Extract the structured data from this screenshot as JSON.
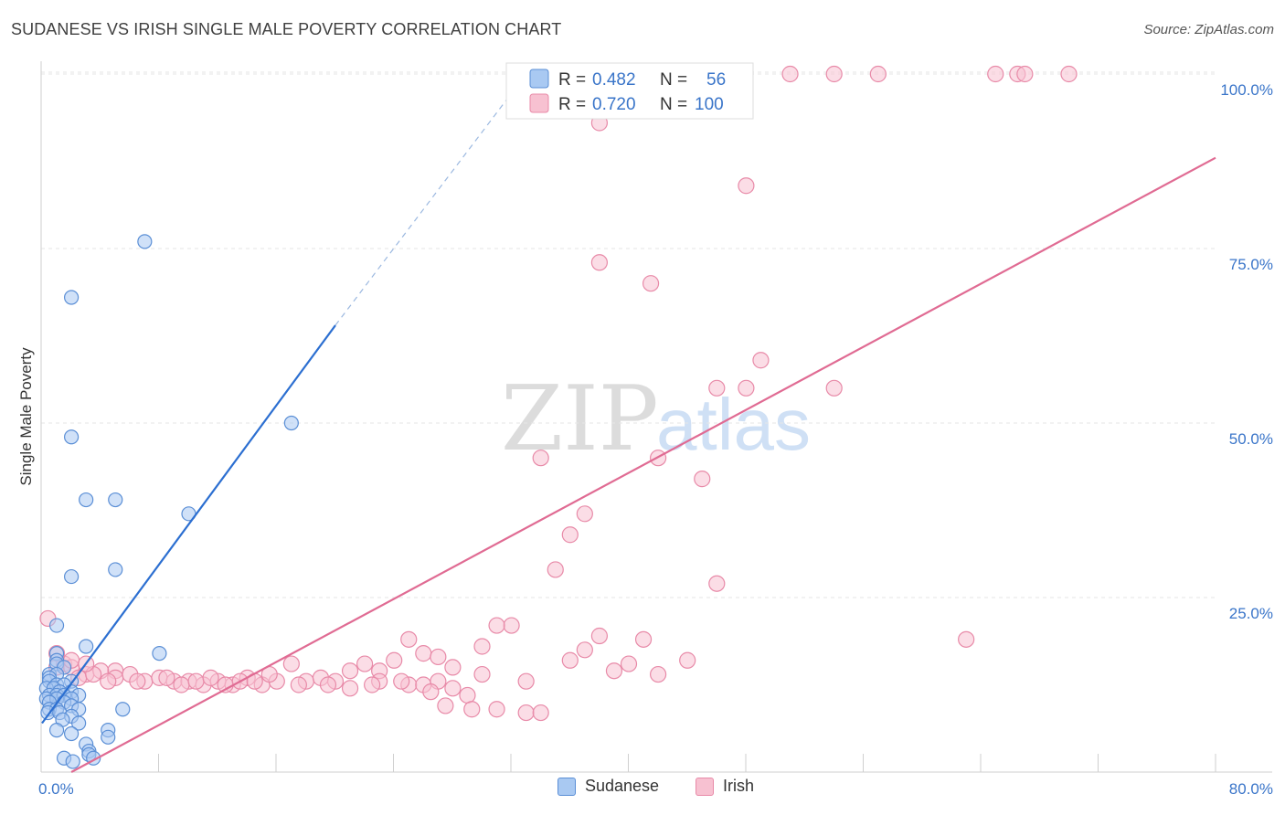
{
  "header": {
    "title": "SUDANESE VS IRISH SINGLE MALE POVERTY CORRELATION CHART",
    "source": "Source: ZipAtlas.com"
  },
  "watermark": {
    "part1": "ZIP",
    "part2": "atlas"
  },
  "chart_data": {
    "type": "scatter",
    "title": "SUDANESE VS IRISH SINGLE MALE POVERTY CORRELATION CHART",
    "xlabel": "",
    "ylabel": "Single Male Poverty",
    "xlim": [
      0,
      80
    ],
    "ylim": [
      0,
      100
    ],
    "x_tick_labels": [
      "0.0%",
      "80.0%"
    ],
    "y_tick_labels": [
      "25.0%",
      "50.0%",
      "75.0%",
      "100.0%"
    ],
    "y_ticks": [
      25,
      50,
      75,
      100
    ],
    "grid": true,
    "legend_position": "top-center",
    "colors": {
      "sudanese_fill": "#a9c9f2",
      "sudanese_stroke": "#5b8fd6",
      "sudanese_line": "#2c6fd1",
      "irish_fill": "#f7c1d1",
      "irish_stroke": "#e88aa8",
      "irish_line": "#e06b93",
      "value_text": "#3a75c9"
    },
    "stats": [
      {
        "r_label": "R =",
        "r": "0.482",
        "n_label": "N =",
        "n": "56"
      },
      {
        "r_label": "R =",
        "r": "0.720",
        "n_label": "N =",
        "n": "100"
      }
    ],
    "series": [
      {
        "name": "Sudanese",
        "trend": {
          "x0": 0,
          "y0": 7,
          "x1": 20,
          "y1": 64,
          "dashed_to": [
            33,
            100
          ]
        },
        "points": [
          [
            7,
            76
          ],
          [
            2,
            68
          ],
          [
            17,
            50
          ],
          [
            2,
            48
          ],
          [
            3,
            39
          ],
          [
            5,
            39
          ],
          [
            10,
            37
          ],
          [
            2,
            28
          ],
          [
            5,
            29
          ],
          [
            1,
            21
          ],
          [
            3,
            18
          ],
          [
            8,
            17
          ],
          [
            1,
            17
          ],
          [
            1,
            16
          ],
          [
            1,
            15.5
          ],
          [
            1.5,
            15
          ],
          [
            0.5,
            14
          ],
          [
            1,
            14
          ],
          [
            0.5,
            13.5
          ],
          [
            2,
            13
          ],
          [
            0.5,
            13
          ],
          [
            1,
            12.5
          ],
          [
            1.5,
            12.5
          ],
          [
            0.3,
            12
          ],
          [
            0.8,
            12
          ],
          [
            1.2,
            11.5
          ],
          [
            2,
            11.5
          ],
          [
            0.5,
            11
          ],
          [
            1,
            11
          ],
          [
            1.5,
            11
          ],
          [
            2.5,
            11
          ],
          [
            0.3,
            10.5
          ],
          [
            1,
            10.5
          ],
          [
            2,
            10.5
          ],
          [
            0.5,
            10
          ],
          [
            1.5,
            10
          ],
          [
            2,
            9.5
          ],
          [
            0.5,
            9
          ],
          [
            1,
            9
          ],
          [
            2.5,
            9
          ],
          [
            0.4,
            8.5
          ],
          [
            1.2,
            8.5
          ],
          [
            2,
            8
          ],
          [
            5.5,
            9
          ],
          [
            1.4,
            7.5
          ],
          [
            2.5,
            7
          ],
          [
            1,
            6
          ],
          [
            4.5,
            6
          ],
          [
            2,
            5.5
          ],
          [
            4.5,
            5
          ],
          [
            3,
            4
          ],
          [
            3.2,
            3
          ],
          [
            3.2,
            2.5
          ],
          [
            3.5,
            2
          ],
          [
            1.5,
            2
          ],
          [
            2.1,
            1.5
          ]
        ]
      },
      {
        "name": "Irish",
        "trend": {
          "x0": 2,
          "y0": 0,
          "x1": 80,
          "y1": 88
        },
        "points": [
          [
            51,
            100
          ],
          [
            54,
            100
          ],
          [
            57,
            100
          ],
          [
            65,
            100
          ],
          [
            66.5,
            100
          ],
          [
            67,
            100
          ],
          [
            70,
            100
          ],
          [
            43,
            100
          ],
          [
            38,
            93
          ],
          [
            48,
            84
          ],
          [
            38,
            73
          ],
          [
            41.5,
            70
          ],
          [
            49,
            59
          ],
          [
            46,
            55
          ],
          [
            48,
            55
          ],
          [
            54,
            55
          ],
          [
            34,
            45
          ],
          [
            42,
            45
          ],
          [
            45,
            42
          ],
          [
            37,
            37
          ],
          [
            36,
            34
          ],
          [
            35,
            29
          ],
          [
            46,
            27
          ],
          [
            0.4,
            22
          ],
          [
            32,
            21
          ],
          [
            31,
            21
          ],
          [
            25,
            19
          ],
          [
            38,
            19.5
          ],
          [
            41,
            19
          ],
          [
            63,
            19
          ],
          [
            30,
            18
          ],
          [
            37,
            17.5
          ],
          [
            26,
            17
          ],
          [
            27,
            16.5
          ],
          [
            24,
            16
          ],
          [
            36,
            16
          ],
          [
            44,
            16
          ],
          [
            40,
            15.5
          ],
          [
            17,
            15.5
          ],
          [
            22,
            15.5
          ],
          [
            28,
            15
          ],
          [
            39,
            14.5
          ],
          [
            21,
            14.5
          ],
          [
            23,
            14.5
          ],
          [
            30,
            14
          ],
          [
            42,
            14
          ],
          [
            33,
            13
          ],
          [
            5,
            14.5
          ],
          [
            1,
            15
          ],
          [
            1.5,
            15.5
          ],
          [
            2,
            15
          ],
          [
            3,
            14
          ],
          [
            4,
            14.5
          ],
          [
            5,
            13.5
          ],
          [
            6,
            14
          ],
          [
            7,
            13
          ],
          [
            8,
            13.5
          ],
          [
            9,
            13
          ],
          [
            10,
            13
          ],
          [
            11,
            12.5
          ],
          [
            12,
            13
          ],
          [
            13,
            12.5
          ],
          [
            14,
            13.5
          ],
          [
            15,
            12.5
          ],
          [
            16,
            13
          ],
          [
            18,
            13
          ],
          [
            19,
            13.5
          ],
          [
            20,
            13
          ],
          [
            21,
            12
          ],
          [
            23,
            13
          ],
          [
            25,
            12.5
          ],
          [
            26,
            12.5
          ],
          [
            27,
            13
          ],
          [
            28,
            12
          ],
          [
            29,
            11
          ],
          [
            2.5,
            13.5
          ],
          [
            3.5,
            14
          ],
          [
            4.5,
            13
          ],
          [
            6.5,
            13
          ],
          [
            8.5,
            13.5
          ],
          [
            9.5,
            12.5
          ],
          [
            10.5,
            13
          ],
          [
            11.5,
            13.5
          ],
          [
            12.5,
            12.5
          ],
          [
            13.5,
            13
          ],
          [
            14.5,
            13
          ],
          [
            15.5,
            14
          ],
          [
            17.5,
            12.5
          ],
          [
            19.5,
            12.5
          ],
          [
            22.5,
            12.5
          ],
          [
            24.5,
            13
          ],
          [
            26.5,
            11.5
          ],
          [
            27.5,
            9.5
          ],
          [
            29.3,
            9
          ],
          [
            31,
            9
          ],
          [
            33,
            8.5
          ],
          [
            34,
            8.5
          ],
          [
            1,
            17
          ],
          [
            2,
            16
          ],
          [
            3,
            15.5
          ]
        ]
      }
    ]
  }
}
